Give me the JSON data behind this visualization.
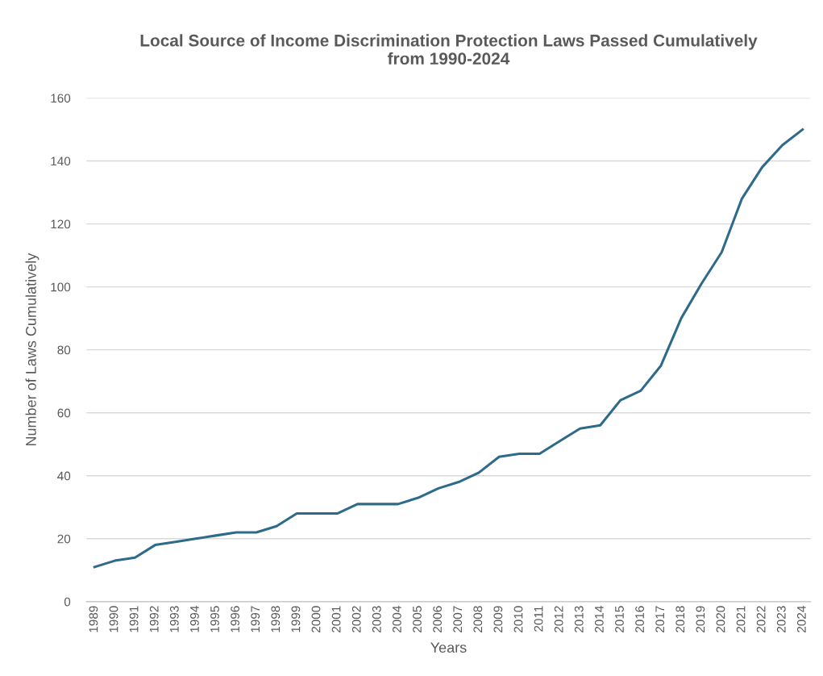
{
  "chart_data": {
    "type": "line",
    "title": "Local Source of Income Discrimination Protection Laws Passed Cumulatively\nfrom 1990-2024",
    "xlabel": "Years",
    "ylabel": "Number of Laws Cumulatively",
    "categories": [
      "1989",
      "1990",
      "1991",
      "1992",
      "1993",
      "1994",
      "1995",
      "1996",
      "1997",
      "1998",
      "1999",
      "2000",
      "2001",
      "2002",
      "2003",
      "2004",
      "2005",
      "2006",
      "2007",
      "2008",
      "2009",
      "2010",
      "2011",
      "2012",
      "2013",
      "2014",
      "2015",
      "2016",
      "2017",
      "2018",
      "2019",
      "2020",
      "2021",
      "2022",
      "2023",
      "2024"
    ],
    "series": [
      {
        "color": "#2e6a8a",
        "values": [
          11,
          13,
          14,
          18,
          19,
          20,
          21,
          22,
          22,
          24,
          28,
          28,
          28,
          31,
          31,
          31,
          33,
          36,
          38,
          41,
          46,
          47,
          47,
          51,
          55,
          56,
          64,
          67,
          75,
          90,
          101,
          111,
          128,
          138,
          145,
          150
        ]
      }
    ],
    "ylim": [
      0,
      160
    ],
    "yticks": [
      0,
      20,
      40,
      60,
      80,
      100,
      120,
      140,
      160
    ],
    "grid": "y",
    "marker": "none",
    "line_style": "solid"
  }
}
